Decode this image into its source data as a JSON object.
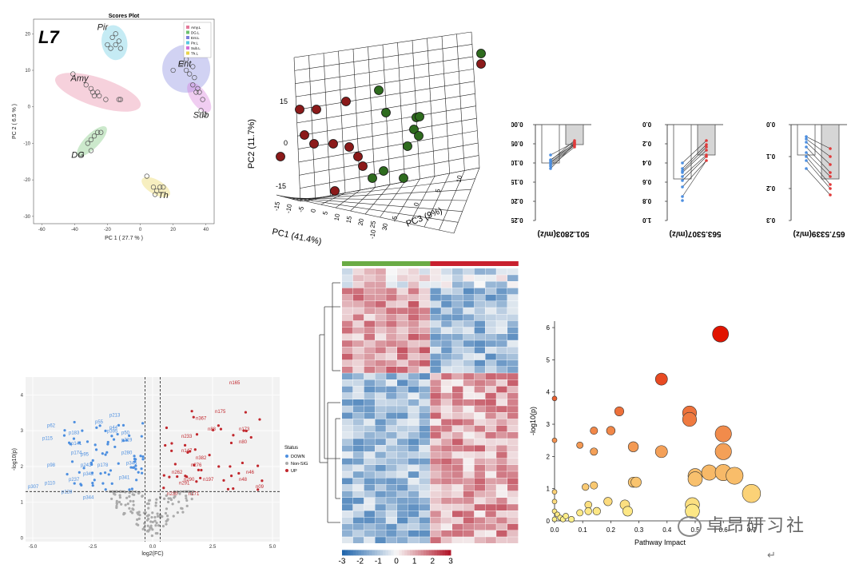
{
  "colors": {
    "amy": "#e57a9a",
    "dg": "#6cc06e",
    "ent": "#7b7fdc",
    "pir": "#58c6e0",
    "sub": "#d36fd6",
    "th": "#e8d24a",
    "down": "#4d8fe0",
    "nonsig": "#aaaaaa",
    "up": "#c1272d",
    "dark_red": "#8b1a1a",
    "dark_green": "#2e6b1e"
  },
  "pca2d": {
    "title": "Scores Plot",
    "panel_label": "L7",
    "xlabel": "PC 1 ( 27.7 % )",
    "ylabel": "PC 2 ( 6.5 % )",
    "legend": [
      "Amy.L",
      "DG.L",
      "Ent.L",
      "Pir.L",
      "Sub.L",
      "Th.L"
    ],
    "groups": [
      {
        "name": "Pir",
        "color": "#58c6e0",
        "points": [
          [
            -20,
            17
          ],
          [
            -17,
            19
          ],
          [
            -15,
            20
          ],
          [
            -13,
            18
          ],
          [
            -12,
            16
          ],
          [
            -18,
            16
          ],
          [
            -15,
            17
          ]
        ]
      },
      {
        "name": "Amy",
        "color": "#e57a9a",
        "points": [
          [
            -41,
            9
          ],
          [
            -33,
            6
          ],
          [
            -30,
            5
          ],
          [
            -29,
            4
          ],
          [
            -28,
            3
          ],
          [
            -25,
            3
          ],
          [
            -21,
            2
          ],
          [
            -13,
            2
          ],
          [
            -12,
            2
          ],
          [
            -26,
            4
          ]
        ]
      },
      {
        "name": "Ent",
        "color": "#7b7fdc",
        "points": [
          [
            20,
            10
          ],
          [
            25,
            12
          ],
          [
            28,
            10
          ],
          [
            30,
            9
          ],
          [
            33,
            8
          ],
          [
            28,
            13
          ],
          [
            32,
            11
          ]
        ]
      },
      {
        "name": "Sub",
        "color": "#d36fd6",
        "points": [
          [
            32,
            6
          ],
          [
            34,
            4
          ],
          [
            36,
            4
          ],
          [
            38,
            2
          ],
          [
            37,
            -1
          ],
          [
            39,
            -2
          ],
          [
            35,
            5
          ]
        ]
      },
      {
        "name": "DG",
        "color": "#6cc06e",
        "points": [
          [
            -36,
            -13
          ],
          [
            -32,
            -10
          ],
          [
            -30,
            -9
          ],
          [
            -28,
            -8
          ],
          [
            -26,
            -7
          ],
          [
            -24,
            -7
          ],
          [
            -30,
            -12
          ]
        ]
      },
      {
        "name": "Th",
        "color": "#e8d24a",
        "points": [
          [
            4,
            -19
          ],
          [
            8,
            -22
          ],
          [
            10,
            -23
          ],
          [
            12,
            -22
          ],
          [
            14,
            -22
          ],
          [
            9,
            -24
          ]
        ]
      }
    ],
    "xticks": [
      "-60",
      "-40",
      "-20",
      "0",
      "20",
      "40"
    ],
    "yticks": [
      "20",
      "10",
      "0",
      "-10",
      "-20",
      "-30"
    ]
  },
  "pca3d": {
    "xlabel": "PC1 (41.4%)",
    "ylabel": "PC2 (11.7%)",
    "zlabel": "PC3 (9%)",
    "yticks": [
      "15",
      "0",
      "-15"
    ],
    "xticks": [
      "-15",
      "-10",
      "-5",
      "0",
      "5",
      "10",
      "15",
      "20",
      "25",
      "30"
    ],
    "zticks": [
      "-10",
      "-5",
      "0",
      "5",
      "10"
    ]
  },
  "bars": [
    {
      "feature": "501.2803(m/z)",
      "yticks": [
        "0.00",
        "0.05",
        "0.10",
        "0.15",
        "0.20",
        "0.25"
      ]
    },
    {
      "feature": "563.5307(m/z)",
      "yticks": [
        "0.0",
        "0.2",
        "0.4",
        "0.6",
        "0.8",
        "1.0"
      ]
    },
    {
      "feature": "657.5339(m/z)",
      "yticks": [
        "0.0",
        "0.1",
        "0.2",
        "0.3"
      ]
    }
  ],
  "volcano": {
    "xlabel": "log2(FC)",
    "ylabel": "-log10(p)",
    "legend_title": "Status",
    "legend": [
      "DOWN",
      "Non-SIG",
      "UP"
    ],
    "xticks": [
      "-5.0",
      "-2.5",
      "0.0",
      "2.5",
      "5.0"
    ],
    "yticks": [
      "0",
      "1",
      "2",
      "3",
      "4"
    ],
    "labels_up": [
      "n160",
      "n122",
      "n165",
      "n175",
      "n367",
      "n88",
      "n173",
      "n80",
      "n233",
      "n147",
      "n382",
      "n276",
      "n46",
      "n48",
      "n290",
      "n197",
      "n262",
      "n291",
      "n230",
      "n171",
      "n09"
    ],
    "labels_down": [
      "p62",
      "p213",
      "p55",
      "p44",
      "p395",
      "p50",
      "p115",
      "p183",
      "p141",
      "p219",
      "p174",
      "p95",
      "p280",
      "p98",
      "p243",
      "p178",
      "p345",
      "p342",
      "p110",
      "p237",
      "p341",
      "p307",
      "p128",
      "p344"
    ]
  },
  "heatmap": {
    "scale_ticks": [
      "-3",
      "-2",
      "-1",
      "0",
      "1",
      "2",
      "3"
    ]
  },
  "bubble": {
    "xlabel": "Pathway Impact",
    "ylabel": "-log10(p)",
    "xticks": [
      "0.0",
      "0.1",
      "0.2",
      "0.3",
      "0.4",
      "0.5",
      "0.6",
      "0.7"
    ],
    "yticks": [
      "0",
      "1",
      "2",
      "3",
      "4",
      "5",
      "6"
    ]
  },
  "chart_data": [
    {
      "type": "scatter",
      "title": "Scores Plot",
      "xlabel": "PC 1 ( 27.7 % )",
      "ylabel": "PC 2 ( 6.5 % )",
      "xlim": [
        -65,
        45
      ],
      "ylim": [
        -32,
        24
      ],
      "series": [
        {
          "name": "Amy.L",
          "points": [
            [
              -41,
              9
            ],
            [
              -33,
              6
            ],
            [
              -30,
              5
            ],
            [
              -29,
              4
            ],
            [
              -28,
              3
            ],
            [
              -25,
              3
            ],
            [
              -21,
              2
            ],
            [
              -13,
              2
            ],
            [
              -12,
              2
            ],
            [
              -26,
              4
            ]
          ]
        },
        {
          "name": "DG.L",
          "points": [
            [
              -36,
              -13
            ],
            [
              -32,
              -10
            ],
            [
              -30,
              -9
            ],
            [
              -28,
              -8
            ],
            [
              -26,
              -7
            ],
            [
              -24,
              -7
            ],
            [
              -30,
              -12
            ]
          ]
        },
        {
          "name": "Ent.L",
          "points": [
            [
              20,
              10
            ],
            [
              25,
              12
            ],
            [
              28,
              10
            ],
            [
              30,
              9
            ],
            [
              33,
              8
            ],
            [
              28,
              13
            ],
            [
              32,
              11
            ]
          ]
        },
        {
          "name": "Pir.L",
          "points": [
            [
              -20,
              17
            ],
            [
              -17,
              19
            ],
            [
              -15,
              20
            ],
            [
              -13,
              18
            ],
            [
              -12,
              16
            ],
            [
              -18,
              16
            ],
            [
              -15,
              17
            ]
          ]
        },
        {
          "name": "Sub.L",
          "points": [
            [
              32,
              6
            ],
            [
              34,
              4
            ],
            [
              36,
              4
            ],
            [
              38,
              2
            ],
            [
              37,
              -1
            ],
            [
              39,
              -2
            ],
            [
              35,
              5
            ]
          ]
        },
        {
          "name": "Th.L",
          "points": [
            [
              4,
              -19
            ],
            [
              8,
              -22
            ],
            [
              10,
              -23
            ],
            [
              12,
              -22
            ],
            [
              14,
              -22
            ],
            [
              9,
              -24
            ]
          ]
        }
      ]
    },
    {
      "type": "scatter",
      "xlabel": "Pathway Impact",
      "ylabel": "-log10(p)",
      "xlim": [
        0,
        0.75
      ],
      "ylim": [
        0,
        6.2
      ],
      "points": [
        {
          "x": 0.59,
          "y": 5.8
        },
        {
          "x": 0.38,
          "y": 4.4
        },
        {
          "x": 0.0,
          "y": 3.8
        },
        {
          "x": 0.23,
          "y": 3.4
        },
        {
          "x": 0.48,
          "y": 3.35
        },
        {
          "x": 0.48,
          "y": 3.15
        },
        {
          "x": 0.14,
          "y": 2.8
        },
        {
          "x": 0.2,
          "y": 2.8
        },
        {
          "x": 0.6,
          "y": 2.7
        },
        {
          "x": 0.0,
          "y": 2.5
        },
        {
          "x": 0.09,
          "y": 2.35
        },
        {
          "x": 0.28,
          "y": 2.3
        },
        {
          "x": 0.14,
          "y": 2.15
        },
        {
          "x": 0.38,
          "y": 2.15
        },
        {
          "x": 0.6,
          "y": 2.15
        },
        {
          "x": 0.5,
          "y": 1.4
        },
        {
          "x": 0.55,
          "y": 1.5
        },
        {
          "x": 0.6,
          "y": 1.5
        },
        {
          "x": 0.64,
          "y": 1.4
        },
        {
          "x": 0.5,
          "y": 1.3
        },
        {
          "x": 0.28,
          "y": 1.2
        },
        {
          "x": 0.29,
          "y": 1.2
        },
        {
          "x": 0.14,
          "y": 1.1
        },
        {
          "x": 0.11,
          "y": 1.05
        },
        {
          "x": 0.7,
          "y": 0.85
        },
        {
          "x": 0.0,
          "y": 0.9
        },
        {
          "x": 0.0,
          "y": 0.6
        },
        {
          "x": 0.19,
          "y": 0.6
        },
        {
          "x": 0.25,
          "y": 0.5
        },
        {
          "x": 0.12,
          "y": 0.5
        },
        {
          "x": 0.49,
          "y": 0.5
        },
        {
          "x": 0.49,
          "y": 0.3
        },
        {
          "x": 0.26,
          "y": 0.3
        },
        {
          "x": 0.15,
          "y": 0.3
        },
        {
          "x": 0.12,
          "y": 0.3
        },
        {
          "x": 0.09,
          "y": 0.25
        },
        {
          "x": 0.0,
          "y": 0.3
        },
        {
          "x": 0.01,
          "y": 0.2
        },
        {
          "x": 0.02,
          "y": 0.1
        },
        {
          "x": 0.03,
          "y": 0.05
        },
        {
          "x": 0.04,
          "y": 0.15
        },
        {
          "x": 0.0,
          "y": 0.05
        },
        {
          "x": 0.06,
          "y": 0.05
        }
      ]
    }
  ]
}
